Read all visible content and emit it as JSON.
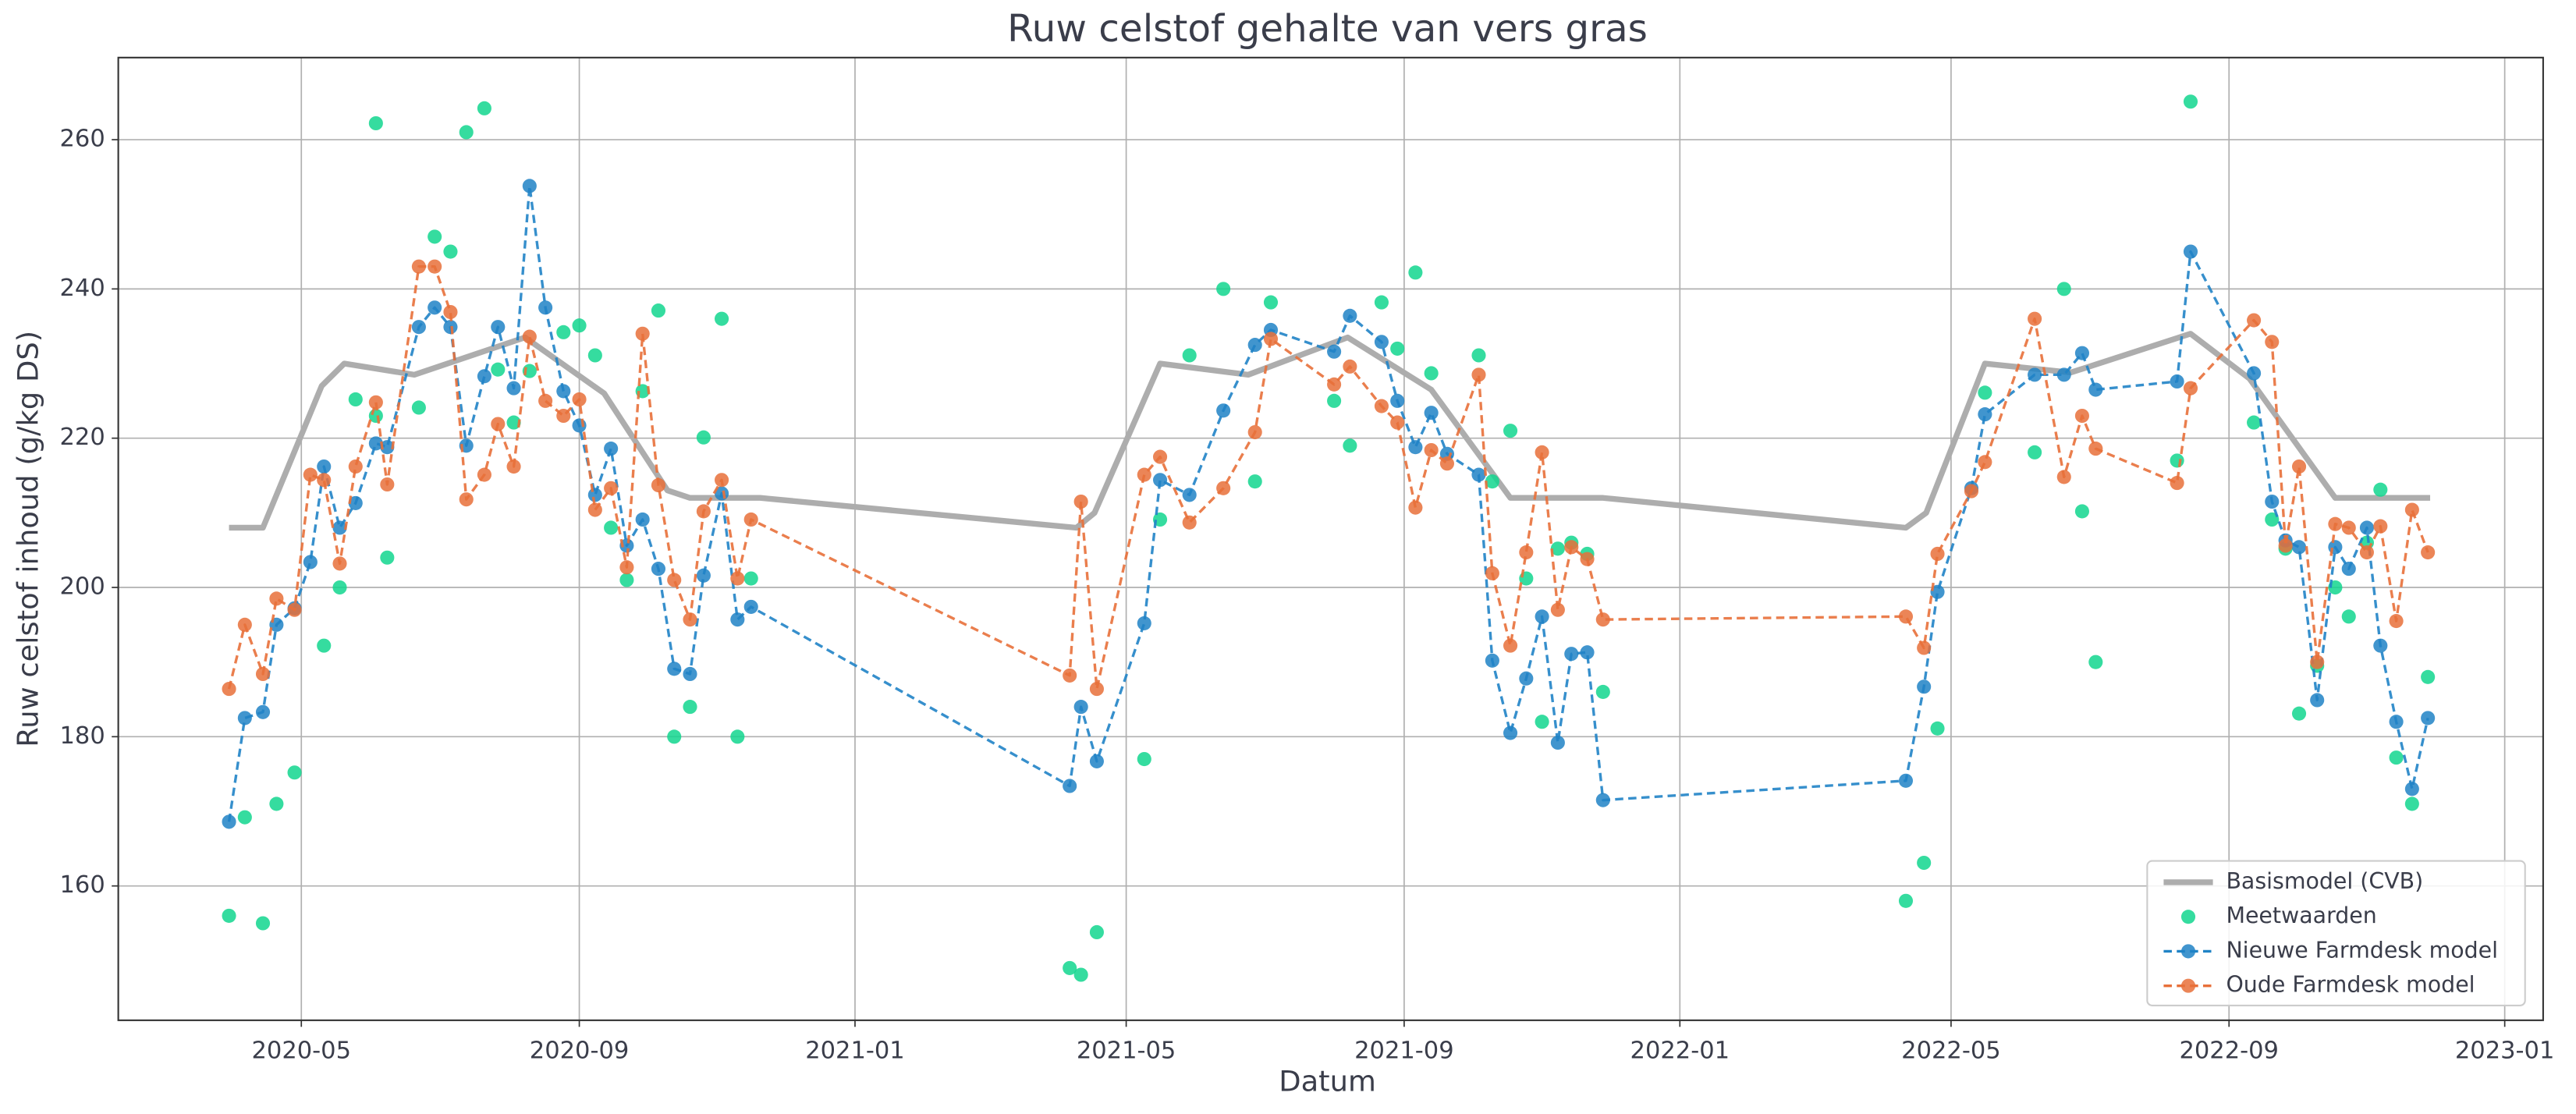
{
  "chart_data": {
    "type": "time-series",
    "title": "Ruw celstof gehalte van vers gras",
    "x_label": "Datum",
    "y_label": "Ruw celstof inhoud (g/kg DS)",
    "xlim": [
      "2020-02-10",
      "2023-01-18"
    ],
    "xticks": [
      "2020-05",
      "2020-09",
      "2021-01",
      "2021-05",
      "2021-09",
      "2022-01",
      "2022-05",
      "2022-09",
      "2023-01"
    ],
    "ylim": [
      142,
      271
    ],
    "yticks": [
      160,
      180,
      200,
      220,
      240,
      260
    ],
    "grid": true,
    "legend": "lower right",
    "series": [
      {
        "name": "Basismodel (CVB)",
        "color": "#adadad",
        "line": "solid",
        "linewidth": 3.5,
        "marker": false,
        "x": [
          "2020-03-30",
          "2020-04-14",
          "2020-05-10",
          "2020-05-20",
          "2020-06-20",
          "2020-08-08",
          "2020-09-12",
          "2020-10-10",
          "2020-10-20",
          "2020-11-20",
          "2021-04-09",
          "2021-04-17",
          "2021-05-16",
          "2021-06-24",
          "2021-08-07",
          "2021-09-13",
          "2021-10-18",
          "2021-11-28",
          "2022-04-11",
          "2022-04-20",
          "2022-05-16",
          "2022-06-23",
          "2022-08-15",
          "2022-09-10",
          "2022-10-18",
          "2022-11-29"
        ],
        "values": [
          208,
          208,
          227,
          230,
          228.5,
          233.5,
          226,
          213,
          212,
          212,
          208,
          210,
          230,
          228.5,
          233.5,
          226.5,
          212,
          212,
          208,
          210,
          230,
          228.8,
          234,
          228,
          212,
          212
        ]
      },
      {
        "name": "Meetwaarden",
        "color": "#12d68e",
        "line": null,
        "marker": true,
        "x": [
          "2020-03-30",
          "2020-04-06",
          "2020-04-14",
          "2020-04-20",
          "2020-04-28",
          "2020-05-11",
          "2020-05-18",
          "2020-05-25",
          "2020-06-03",
          "2020-06-03",
          "2020-06-08",
          "2020-06-22",
          "2020-06-29",
          "2020-07-06",
          "2020-07-13",
          "2020-07-21",
          "2020-07-27",
          "2020-08-03",
          "2020-08-10",
          "2020-08-25",
          "2020-09-01",
          "2020-09-08",
          "2020-09-15",
          "2020-09-22",
          "2020-09-29",
          "2020-10-06",
          "2020-10-13",
          "2020-10-20",
          "2020-10-26",
          "2020-11-03",
          "2020-11-10",
          "2020-11-16",
          "2021-04-06",
          "2021-04-11",
          "2021-04-18",
          "2021-05-09",
          "2021-05-16",
          "2021-05-29",
          "2021-06-13",
          "2021-06-27",
          "2021-07-04",
          "2021-08-01",
          "2021-08-08",
          "2021-08-22",
          "2021-08-29",
          "2021-09-06",
          "2021-09-13",
          "2021-10-04",
          "2021-10-10",
          "2021-10-18",
          "2021-10-25",
          "2021-11-01",
          "2021-11-08",
          "2021-11-14",
          "2021-11-21",
          "2021-11-28",
          "2022-04-11",
          "2022-04-19",
          "2022-04-25",
          "2022-05-16",
          "2022-06-07",
          "2022-06-20",
          "2022-06-28",
          "2022-07-04",
          "2022-08-09",
          "2022-08-15",
          "2022-09-12",
          "2022-09-20",
          "2022-09-26",
          "2022-10-02",
          "2022-10-10",
          "2022-10-18",
          "2022-10-24",
          "2022-11-01",
          "2022-11-07",
          "2022-11-14",
          "2022-11-21",
          "2022-11-28"
        ],
        "values": [
          156,
          169.2,
          155,
          171,
          175.2,
          192.2,
          200,
          225.2,
          262.2,
          223,
          204,
          224.1,
          247,
          245,
          261,
          264.2,
          229.2,
          222.1,
          229,
          234.2,
          235.1,
          231.1,
          208,
          201,
          226.3,
          237.1,
          180,
          184,
          220.1,
          236,
          180,
          201.2,
          149,
          148.1,
          153.8,
          177,
          209.1,
          231.1,
          240,
          214.2,
          238.2,
          225,
          219,
          238.2,
          232,
          242.2,
          228.7,
          231.1,
          214.2,
          221,
          201.2,
          182,
          205.2,
          206,
          204.5,
          186,
          158,
          163.1,
          181.1,
          226.1,
          218.1,
          240,
          210.2,
          190,
          217,
          265.1,
          222.1,
          209.1,
          205.2,
          183.1,
          189.5,
          200,
          196.1,
          206,
          213.1,
          177.2,
          171,
          188
        ]
      },
      {
        "name": "Nieuwe Farmdesk model",
        "color": "#2083c6",
        "line": "dashed",
        "linewidth": 1.6,
        "marker": true,
        "x": [
          "2020-03-30",
          "2020-04-06",
          "2020-04-14",
          "2020-04-20",
          "2020-04-28",
          "2020-05-05",
          "2020-05-11",
          "2020-05-18",
          "2020-05-25",
          "2020-06-03",
          "2020-06-08",
          "2020-06-22",
          "2020-06-29",
          "2020-07-06",
          "2020-07-13",
          "2020-07-21",
          "2020-07-27",
          "2020-08-03",
          "2020-08-10",
          "2020-08-17",
          "2020-08-25",
          "2020-09-01",
          "2020-09-08",
          "2020-09-15",
          "2020-09-22",
          "2020-09-29",
          "2020-10-06",
          "2020-10-13",
          "2020-10-20",
          "2020-10-26",
          "2020-11-03",
          "2020-11-10",
          "2020-11-16",
          "2021-04-06",
          "2021-04-11",
          "2021-04-18",
          "2021-05-09",
          "2021-05-16",
          "2021-05-29",
          "2021-06-13",
          "2021-06-27",
          "2021-07-04",
          "2021-08-01",
          "2021-08-08",
          "2021-08-22",
          "2021-08-29",
          "2021-09-06",
          "2021-09-13",
          "2021-09-20",
          "2021-10-04",
          "2021-10-10",
          "2021-10-18",
          "2021-10-25",
          "2021-11-01",
          "2021-11-08",
          "2021-11-14",
          "2021-11-21",
          "2021-11-28",
          "2022-04-11",
          "2022-04-19",
          "2022-04-25",
          "2022-05-10",
          "2022-05-16",
          "2022-06-07",
          "2022-06-20",
          "2022-06-28",
          "2022-07-04",
          "2022-08-09",
          "2022-08-15",
          "2022-09-12",
          "2022-09-20",
          "2022-09-26",
          "2022-10-02",
          "2022-10-10",
          "2022-10-18",
          "2022-10-24",
          "2022-11-01",
          "2022-11-07",
          "2022-11-14",
          "2022-11-21",
          "2022-11-28"
        ],
        "values": [
          168.6,
          182.5,
          183.3,
          195,
          197.2,
          203.4,
          216.2,
          208,
          211.3,
          219.3,
          218.8,
          234.9,
          237.5,
          234.9,
          219,
          228.3,
          234.9,
          226.7,
          253.8,
          237.5,
          226.3,
          221.7,
          212.4,
          218.6,
          205.6,
          209.1,
          202.5,
          189.1,
          188.4,
          201.6,
          212.6,
          195.7,
          197.4,
          173.4,
          184,
          176.7,
          195.2,
          214.4,
          212.4,
          223.7,
          232.5,
          234.5,
          231.6,
          236.4,
          232.9,
          225,
          218.8,
          223.4,
          217.9,
          215.1,
          190.2,
          180.5,
          187.8,
          196.1,
          179.2,
          191.1,
          191.3,
          171.5,
          174.1,
          186.7,
          199.4,
          213.3,
          223.2,
          228.5,
          228.5,
          231.4,
          226.5,
          227.6,
          245,
          228.7,
          211.5,
          206.3,
          205.4,
          184.9,
          205.4,
          202.5,
          208,
          192.2,
          182,
          173,
          182.5
        ]
      },
      {
        "name": "Oude Farmdesk model",
        "color": "#e8703a",
        "line": "dashed",
        "linewidth": 1.6,
        "marker": true,
        "x": [
          "2020-03-30",
          "2020-04-06",
          "2020-04-14",
          "2020-04-20",
          "2020-04-28",
          "2020-05-05",
          "2020-05-11",
          "2020-05-18",
          "2020-05-25",
          "2020-06-03",
          "2020-06-08",
          "2020-06-22",
          "2020-06-29",
          "2020-07-06",
          "2020-07-13",
          "2020-07-21",
          "2020-07-27",
          "2020-08-03",
          "2020-08-10",
          "2020-08-17",
          "2020-08-25",
          "2020-09-01",
          "2020-09-08",
          "2020-09-15",
          "2020-09-22",
          "2020-09-29",
          "2020-10-06",
          "2020-10-13",
          "2020-10-20",
          "2020-10-26",
          "2020-11-03",
          "2020-11-10",
          "2020-11-16",
          "2021-04-06",
          "2021-04-11",
          "2021-04-18",
          "2021-05-09",
          "2021-05-16",
          "2021-05-29",
          "2021-06-13",
          "2021-06-27",
          "2021-07-04",
          "2021-08-01",
          "2021-08-08",
          "2021-08-22",
          "2021-08-29",
          "2021-09-06",
          "2021-09-13",
          "2021-09-20",
          "2021-10-04",
          "2021-10-10",
          "2021-10-18",
          "2021-10-25",
          "2021-11-01",
          "2021-11-08",
          "2021-11-14",
          "2021-11-21",
          "2021-11-28",
          "2022-04-11",
          "2022-04-19",
          "2022-04-25",
          "2022-05-10",
          "2022-05-16",
          "2022-06-07",
          "2022-06-20",
          "2022-06-28",
          "2022-07-04",
          "2022-08-09",
          "2022-08-15",
          "2022-09-12",
          "2022-09-20",
          "2022-09-26",
          "2022-10-02",
          "2022-10-10",
          "2022-10-18",
          "2022-10-24",
          "2022-11-01",
          "2022-11-07",
          "2022-11-14",
          "2022-11-21",
          "2022-11-28"
        ],
        "values": [
          186.4,
          195,
          188.4,
          198.5,
          197,
          215.1,
          214.4,
          203.2,
          216.2,
          224.8,
          213.8,
          243,
          243,
          236.9,
          211.8,
          215.1,
          221.9,
          216.2,
          233.6,
          225,
          223,
          225.2,
          210.4,
          213.3,
          202.7,
          234,
          213.7,
          201,
          195.7,
          210.2,
          214.4,
          201.2,
          209.1,
          188.2,
          211.5,
          186.4,
          215.1,
          217.5,
          208.7,
          213.3,
          220.8,
          233.3,
          227.2,
          229.6,
          224.3,
          222.1,
          210.7,
          218.4,
          216.6,
          228.5,
          201.9,
          192.2,
          204.7,
          218.1,
          197,
          205.4,
          203.8,
          195.7,
          196.1,
          191.9,
          204.5,
          212.9,
          216.8,
          236,
          214.8,
          223,
          218.6,
          214,
          226.7,
          235.8,
          232.9,
          205.6,
          216.2,
          190,
          208.5,
          208,
          204.7,
          208.2,
          195.5,
          210.4,
          204.7
        ]
      }
    ]
  }
}
